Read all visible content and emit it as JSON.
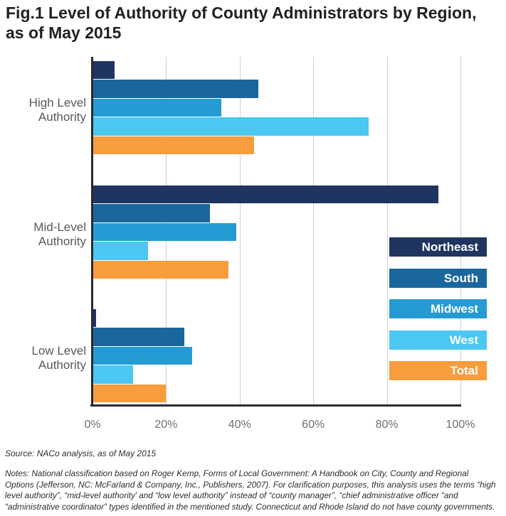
{
  "title": "Fig.1 Level of Authority of County Administrators by Region,\nas of May 2015",
  "chart_data": {
    "type": "bar",
    "orientation": "horizontal",
    "categories": [
      "High Level\nAuthority",
      "Mid-Level\nAuthority",
      "Low Level\nAuthority"
    ],
    "series": [
      {
        "name": "Northeast",
        "color": "#1f3460",
        "values": [
          6,
          94,
          1
        ]
      },
      {
        "name": "South",
        "color": "#1a679d",
        "values": [
          45,
          32,
          25
        ]
      },
      {
        "name": "Midwest",
        "color": "#249bd3",
        "values": [
          35,
          39,
          27
        ]
      },
      {
        "name": "West",
        "color": "#4bc7f2",
        "values": [
          75,
          15,
          11
        ]
      },
      {
        "name": "Total",
        "color": "#f89c3d",
        "values": [
          44,
          37,
          20
        ]
      }
    ],
    "x_axis": {
      "min": 0,
      "max": 100,
      "tick_step": 20,
      "tick_labels": [
        "0%",
        "20%",
        "40%",
        "60%",
        "80%",
        "100%"
      ]
    },
    "unit": "percent",
    "grid": true,
    "legend_position": "right-inside"
  },
  "source": "Source: NACo analysis, as of May 2015",
  "notes": "Notes: National classification based on Roger Kemp, Forms of Local Government: A Handbook on City, County and Regional\nOptions (Jefferson, NC: McFarland & Company, Inc., Publishers, 2007). For clarification purposes, this analysis uses the terms “high\nlevel authority”, “mid-level authority’ and “low level authority” instead of “county manager”, “chief administrative officer “and\n“administrative coordinator” types identified in the mentioned study.  Connecticut and Rhode Island do not have county governments."
}
